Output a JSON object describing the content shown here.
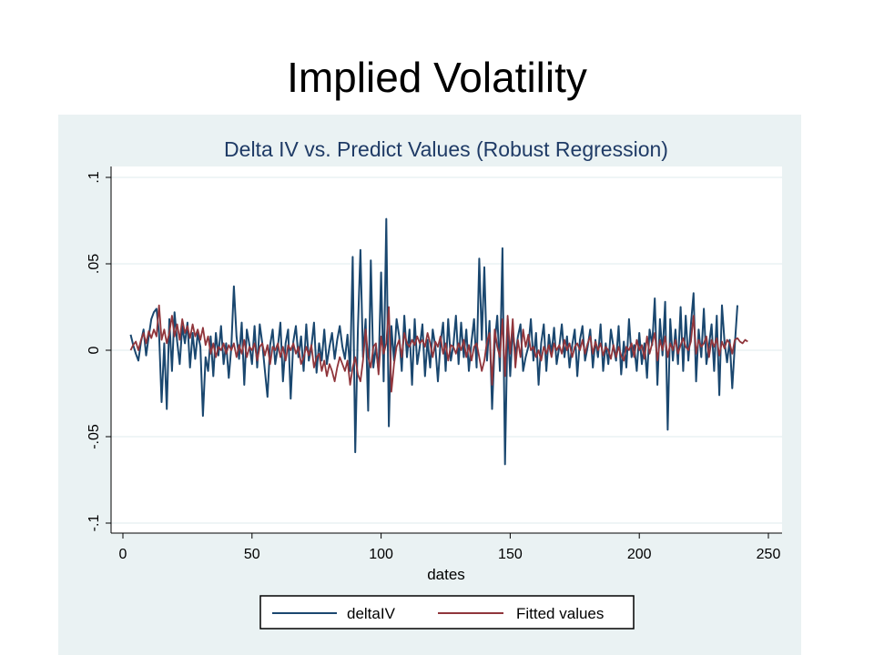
{
  "slide": {
    "title": "Implied Volatility"
  },
  "colors": {
    "background": "#eaf2f3",
    "plot_area": "#ffffff",
    "grid": "#eaf2f3",
    "deltaIV": "#1a476f",
    "fitted": "#90353b",
    "title": "#1f3b66"
  },
  "chart_data": {
    "type": "line",
    "title": "Delta IV vs. Predict Values (Robust Regression)",
    "xlabel": "dates",
    "ylabel": "",
    "xlim": [
      0,
      250
    ],
    "ylim": [
      -0.1,
      0.1
    ],
    "x_ticks": [
      0,
      50,
      100,
      150,
      200,
      250
    ],
    "x_tick_labels": [
      "0",
      "50",
      "100",
      "150",
      "200",
      "250"
    ],
    "y_ticks": [
      -0.1,
      -0.05,
      0,
      0.05,
      0.1
    ],
    "y_tick_labels": [
      "-.1",
      "-.05",
      "0",
      ".05",
      ".1"
    ],
    "grid": true,
    "legend_position": "bottom",
    "x_start": 3,
    "x_step": 1,
    "series": [
      {
        "name": "deltaIV",
        "color": "#1a476f",
        "values": [
          0.009,
          0.003,
          -0.002,
          -0.006,
          0.005,
          0.012,
          -0.003,
          0.008,
          0.018,
          0.022,
          0.024,
          0.01,
          -0.03,
          0.004,
          -0.034,
          0.018,
          -0.012,
          0.022,
          0.005,
          -0.008,
          0.014,
          0.004,
          0.016,
          -0.01,
          0.01,
          -0.005,
          0.01,
          0.002,
          -0.038,
          -0.004,
          -0.012,
          0.008,
          -0.015,
          0.01,
          -0.003,
          0.014,
          -0.008,
          0.004,
          -0.016,
          0.002,
          0.037,
          0.008,
          -0.005,
          0.016,
          -0.02,
          0.012,
          0.003,
          -0.008,
          0.014,
          -0.01,
          0.015,
          0.004,
          -0.012,
          -0.027,
          0.003,
          0.012,
          -0.008,
          0.002,
          0.016,
          -0.018,
          0.004,
          0.012,
          -0.028,
          0.005,
          0.014,
          -0.004,
          0.008,
          -0.012,
          0.015,
          -0.006,
          0.002,
          0.016,
          -0.013,
          0.004,
          -0.006,
          0.012,
          -0.008,
          0.002,
          0.01,
          -0.005,
          0.006,
          0.014,
          0.002,
          -0.005,
          0.009,
          -0.012,
          0.054,
          -0.059,
          0.012,
          0.058,
          -0.004,
          0.018,
          -0.035,
          0.052,
          -0.01,
          0.002,
          -0.012,
          0.045,
          -0.018,
          0.076,
          -0.044,
          0.014,
          -0.006,
          0.018,
          0.008,
          -0.012,
          0.02,
          -0.004,
          0.012,
          -0.02,
          0.018,
          -0.008,
          0.002,
          0.015,
          -0.015,
          0.006,
          -0.01,
          0.012,
          0.002,
          -0.018,
          0.004,
          0.016,
          -0.012,
          0.018,
          -0.006,
          0.003,
          0.02,
          -0.008,
          0.016,
          -0.004,
          0.012,
          -0.012,
          0.005,
          0.018,
          -0.01,
          0.053,
          0.006,
          0.048,
          -0.006,
          0.017,
          -0.034,
          0.004,
          0.02,
          -0.012,
          0.059,
          -0.066,
          0.018,
          -0.015,
          0.012,
          -0.003,
          0.008,
          0.015,
          -0.012,
          -0.004,
          0.002,
          0.018,
          -0.006,
          0.01,
          -0.02,
          0.004,
          0.015,
          -0.012,
          0.009,
          -0.002,
          0.013,
          -0.008,
          0.002,
          0.015,
          -0.004,
          0.008,
          -0.01,
          0.003,
          0.012,
          -0.015,
          0.006,
          0.014,
          -0.006,
          0.002,
          0.012,
          -0.01,
          0.006,
          -0.004,
          0.015,
          -0.012,
          0.004,
          -0.008,
          0.012,
          0.002,
          -0.006,
          0.014,
          -0.014,
          0.005,
          -0.01,
          0.018,
          -0.004,
          0.003,
          -0.012,
          0.01,
          -0.008,
          0.004,
          -0.016,
          0.012,
          0.003,
          0.03,
          -0.02,
          0.018,
          -0.003,
          0.028,
          -0.046,
          0.018,
          -0.006,
          0.012,
          -0.008,
          0.025,
          -0.012,
          0.02,
          -0.006,
          0.015,
          0.033,
          -0.018,
          0.012,
          -0.004,
          0.024,
          -0.008,
          0.003,
          0.015,
          -0.012,
          0.02,
          -0.026,
          0.026,
          0.005,
          -0.007,
          0.006,
          -0.022,
          0.003,
          0.026
        ]
      },
      {
        "name": "Fitted values",
        "color": "#90353b",
        "values": [
          0.0,
          0.003,
          0.005,
          0.0,
          0.006,
          0.01,
          0.004,
          0.011,
          0.007,
          0.012,
          0.008,
          0.026,
          0.006,
          0.012,
          0.004,
          0.01,
          0.02,
          0.008,
          0.015,
          0.006,
          0.018,
          0.01,
          0.014,
          0.007,
          0.015,
          0.008,
          0.012,
          0.006,
          0.013,
          0.003,
          0.008,
          -0.002,
          0.004,
          -0.004,
          0.002,
          0.0,
          0.004,
          -0.002,
          0.003,
          0.0,
          0.004,
          -0.004,
          0.003,
          -0.002,
          0.006,
          -0.004,
          0.002,
          0.0,
          0.004,
          -0.006,
          0.002,
          0.004,
          -0.003,
          0.003,
          -0.008,
          0.002,
          0.0,
          0.004,
          -0.004,
          0.002,
          -0.006,
          0.003,
          0.0,
          0.004,
          -0.002,
          0.002,
          -0.008,
          -0.004,
          0.002,
          -0.003,
          0.003,
          -0.01,
          -0.004,
          -0.002,
          -0.012,
          -0.006,
          -0.015,
          -0.008,
          -0.012,
          -0.018,
          -0.01,
          -0.004,
          -0.008,
          -0.012,
          -0.006,
          -0.02,
          -0.01,
          -0.004,
          -0.014,
          -0.018,
          -0.006,
          0.012,
          -0.004,
          -0.01,
          0.002,
          0.004,
          -0.014,
          0.008,
          -0.002,
          0.004,
          0.025,
          -0.024,
          -0.008,
          0.002,
          0.006,
          -0.004,
          0.01,
          0.004,
          0.002,
          0.006,
          0.003,
          0.008,
          0.004,
          0.006,
          0.002,
          0.01,
          0.004,
          -0.004,
          0.005,
          0.002,
          0.008,
          -0.002,
          0.004,
          -0.006,
          0.003,
          0.002,
          -0.002,
          0.004,
          0.0,
          0.006,
          -0.004,
          0.003,
          -0.006,
          0.002,
          0.004,
          -0.004,
          -0.012,
          -0.006,
          0.005,
          0.01,
          -0.02,
          0.012,
          0.002,
          -0.004,
          0.018,
          -0.015,
          0.02,
          -0.002,
          0.018,
          -0.01,
          0.006,
          -0.004,
          0.012,
          0.002,
          0.009,
          0.0,
          0.002,
          -0.004,
          0.0,
          -0.006,
          0.002,
          -0.002,
          0.003,
          -0.004,
          0.004,
          0.0,
          0.003,
          -0.002,
          0.006,
          0.0,
          0.004,
          -0.004,
          0.002,
          0.004,
          0.0,
          0.006,
          -0.002,
          0.004,
          0.008,
          -0.002,
          0.005,
          0.0,
          0.004,
          -0.003,
          0.002,
          0.0,
          -0.005,
          0.003,
          -0.004,
          0.002,
          -0.003,
          -0.006,
          0.002,
          0.0,
          0.004,
          -0.004,
          0.006,
          0.0,
          0.003,
          -0.005,
          0.008,
          -0.002,
          0.004,
          0.01,
          -0.006,
          0.006,
          0.0,
          0.008,
          -0.004,
          0.004,
          0.0,
          0.006,
          -0.002,
          0.003,
          0.007,
          0.002,
          0.0,
          0.005,
          0.02,
          -0.002,
          0.006,
          0.002,
          0.004,
          0.008,
          -0.004,
          0.006,
          0.002,
          0.007,
          -0.003,
          0.005,
          0.001,
          0.006,
          0.004,
          -0.002,
          0.006,
          0.007,
          0.005,
          0.004,
          0.006,
          0.005
        ]
      }
    ]
  }
}
